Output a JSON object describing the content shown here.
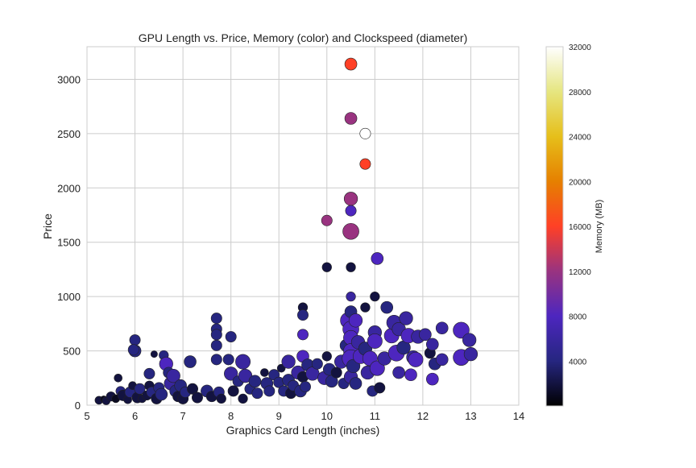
{
  "chart_data": {
    "type": "scatter",
    "title": "GPU Length vs. Price, Memory (color) and Clockspeed (diameter)",
    "xlabel": "Graphics Card Length (inches)",
    "ylabel": "Price",
    "xlim": [
      5,
      14
    ],
    "ylim": [
      0,
      3300
    ],
    "xticks": [
      5,
      6,
      7,
      8,
      9,
      10,
      11,
      12,
      13,
      14
    ],
    "yticks": [
      0,
      500,
      1000,
      1500,
      2000,
      2500,
      3000
    ],
    "grid": true,
    "colorbar": {
      "label": "Memory (MB)",
      "range": [
        0,
        32000
      ],
      "ticks": [
        4000,
        8000,
        12000,
        16000,
        20000,
        24000,
        28000,
        32000
      ],
      "colormap": "CMRmap"
    },
    "point_fields": [
      "length_in",
      "price",
      "memory_mb",
      "clockspeed_mhz"
    ],
    "points": [
      [
        5.25,
        45,
        2000,
        900
      ],
      [
        5.35,
        55,
        1000,
        850
      ],
      [
        5.4,
        40,
        2000,
        900
      ],
      [
        5.5,
        80,
        2000,
        950
      ],
      [
        5.6,
        60,
        1000,
        900
      ],
      [
        5.65,
        250,
        2000,
        900
      ],
      [
        5.7,
        130,
        4000,
        950
      ],
      [
        5.75,
        90,
        2000,
        1000
      ],
      [
        5.85,
        50,
        2000,
        900
      ],
      [
        5.9,
        120,
        4000,
        1000
      ],
      [
        5.95,
        180,
        2000,
        900
      ],
      [
        6.0,
        600,
        4000,
        1000
      ],
      [
        6.0,
        500,
        4000,
        1050
      ],
      [
        5.97,
        510,
        4000,
        1000
      ],
      [
        6.05,
        70,
        2000,
        1000
      ],
      [
        6.1,
        150,
        4000,
        1000
      ],
      [
        6.15,
        60,
        2000,
        900
      ],
      [
        6.25,
        90,
        2000,
        950
      ],
      [
        6.3,
        290,
        4000,
        1000
      ],
      [
        6.3,
        180,
        2000,
        950
      ],
      [
        6.35,
        120,
        4000,
        1000
      ],
      [
        6.4,
        470,
        2000,
        850
      ],
      [
        6.45,
        60,
        2000,
        1000
      ],
      [
        6.5,
        160,
        4000,
        1000
      ],
      [
        6.55,
        100,
        4000,
        1050
      ],
      [
        6.6,
        460,
        4000,
        950
      ],
      [
        6.65,
        380,
        8000,
        1100
      ],
      [
        6.7,
        300,
        4000,
        1000
      ],
      [
        6.75,
        200,
        6000,
        1100
      ],
      [
        6.8,
        270,
        6000,
        1100
      ],
      [
        6.85,
        130,
        4000,
        1050
      ],
      [
        6.9,
        80,
        2000,
        1000
      ],
      [
        6.95,
        180,
        4000,
        1050
      ],
      [
        7.0,
        60,
        2000,
        1000
      ],
      [
        7.05,
        120,
        4000,
        1000
      ],
      [
        7.15,
        400,
        4000,
        1050
      ],
      [
        7.2,
        150,
        2000,
        1000
      ],
      [
        7.3,
        70,
        2000,
        1000
      ],
      [
        7.5,
        130,
        4000,
        1050
      ],
      [
        7.6,
        80,
        2000,
        1000
      ],
      [
        7.7,
        800,
        4000,
        1000
      ],
      [
        7.7,
        700,
        4000,
        1000
      ],
      [
        7.7,
        650,
        4000,
        1000
      ],
      [
        7.7,
        550,
        4000,
        1000
      ],
      [
        7.7,
        420,
        4000,
        1000
      ],
      [
        7.75,
        120,
        4000,
        1000
      ],
      [
        7.8,
        60,
        2000,
        950
      ],
      [
        7.95,
        420,
        4000,
        1000
      ],
      [
        8.0,
        630,
        4000,
        1000
      ],
      [
        8.0,
        290,
        6000,
        1100
      ],
      [
        8.05,
        130,
        2000,
        1000
      ],
      [
        8.15,
        220,
        4000,
        1000
      ],
      [
        8.25,
        400,
        6000,
        1150
      ],
      [
        8.3,
        270,
        6000,
        1100
      ],
      [
        8.25,
        60,
        2000,
        950
      ],
      [
        8.4,
        150,
        4000,
        1000
      ],
      [
        8.5,
        220,
        4000,
        1050
      ],
      [
        8.55,
        110,
        4000,
        1000
      ],
      [
        8.7,
        300,
        2000,
        900
      ],
      [
        8.75,
        200,
        4000,
        1050
      ],
      [
        8.8,
        130,
        4000,
        1000
      ],
      [
        8.9,
        280,
        4000,
        1000
      ],
      [
        9.0,
        210,
        4000,
        1000
      ],
      [
        9.05,
        340,
        2000,
        900
      ],
      [
        9.1,
        130,
        4000,
        1000
      ],
      [
        9.2,
        400,
        6000,
        1100
      ],
      [
        9.2,
        230,
        4000,
        1050
      ],
      [
        9.25,
        110,
        2000,
        1000
      ],
      [
        9.3,
        180,
        4000,
        1000
      ],
      [
        9.4,
        300,
        6000,
        1100
      ],
      [
        9.45,
        130,
        4000,
        1050
      ],
      [
        9.5,
        900,
        2000,
        950
      ],
      [
        9.5,
        830,
        4000,
        1000
      ],
      [
        9.5,
        650,
        8000,
        1000
      ],
      [
        9.5,
        450,
        8000,
        1050
      ],
      [
        9.5,
        260,
        2000,
        1000
      ],
      [
        9.55,
        170,
        4000,
        1000
      ],
      [
        9.6,
        370,
        4000,
        1050
      ],
      [
        9.7,
        290,
        6000,
        1100
      ],
      [
        9.8,
        380,
        4000,
        1000
      ],
      [
        9.95,
        250,
        6000,
        1100
      ],
      [
        10.0,
        1700,
        12000,
        1000
      ],
      [
        10.0,
        1270,
        2000,
        950
      ],
      [
        10.0,
        450,
        2000,
        950
      ],
      [
        10.05,
        330,
        4000,
        1050
      ],
      [
        10.1,
        220,
        4000,
        1050
      ],
      [
        10.2,
        300,
        2000,
        1000
      ],
      [
        10.3,
        400,
        6000,
        1100
      ],
      [
        10.35,
        200,
        4000,
        1000
      ],
      [
        10.4,
        550,
        4000,
        1050
      ],
      [
        10.45,
        780,
        8000,
        1200
      ],
      [
        10.5,
        3140,
        16000,
        1050
      ],
      [
        10.5,
        2640,
        12000,
        1050
      ],
      [
        10.5,
        1900,
        12000,
        1100
      ],
      [
        10.5,
        1790,
        8000,
        1000
      ],
      [
        10.5,
        1600,
        12000,
        1200
      ],
      [
        10.5,
        1270,
        2000,
        950
      ],
      [
        10.5,
        1000,
        6000,
        950
      ],
      [
        10.5,
        860,
        4000,
        1050
      ],
      [
        10.5,
        700,
        8000,
        1200
      ],
      [
        10.5,
        620,
        8000,
        1150
      ],
      [
        10.5,
        500,
        8000,
        1150
      ],
      [
        10.5,
        430,
        8000,
        1250
      ],
      [
        10.5,
        260,
        6000,
        1100
      ],
      [
        10.55,
        360,
        4000,
        1100
      ],
      [
        10.6,
        780,
        8000,
        1100
      ],
      [
        10.6,
        200,
        4000,
        1050
      ],
      [
        10.65,
        580,
        6000,
        1100
      ],
      [
        10.7,
        450,
        8000,
        1150
      ],
      [
        10.8,
        2500,
        32000,
        1000
      ],
      [
        10.8,
        2220,
        16000,
        1000
      ],
      [
        10.8,
        900,
        2000,
        950
      ],
      [
        10.8,
        520,
        4000,
        1100
      ],
      [
        10.85,
        300,
        6000,
        1100
      ],
      [
        10.9,
        430,
        8000,
        1150
      ],
      [
        10.95,
        130,
        4000,
        1000
      ],
      [
        11.0,
        1000,
        2000,
        950
      ],
      [
        11.0,
        670,
        6000,
        1100
      ],
      [
        11.0,
        590,
        8000,
        1150
      ],
      [
        11.05,
        1350,
        8000,
        1050
      ],
      [
        11.05,
        340,
        8000,
        1150
      ],
      [
        11.1,
        160,
        2000,
        1000
      ],
      [
        11.2,
        430,
        6000,
        1100
      ],
      [
        11.25,
        900,
        4000,
        1050
      ],
      [
        11.35,
        640,
        8000,
        1150
      ],
      [
        11.4,
        760,
        6000,
        1150
      ],
      [
        11.45,
        480,
        8000,
        1200
      ],
      [
        11.5,
        300,
        6000,
        1050
      ],
      [
        11.5,
        700,
        6000,
        1100
      ],
      [
        11.6,
        530,
        4000,
        1100
      ],
      [
        11.65,
        800,
        6000,
        1100
      ],
      [
        11.7,
        640,
        8000,
        1150
      ],
      [
        11.75,
        280,
        8000,
        1050
      ],
      [
        11.8,
        440,
        6000,
        1100
      ],
      [
        11.85,
        420,
        8000,
        1150
      ],
      [
        11.9,
        630,
        6000,
        1100
      ],
      [
        12.05,
        650,
        6000,
        1050
      ],
      [
        12.15,
        480,
        2000,
        1000
      ],
      [
        12.2,
        560,
        6000,
        1050
      ],
      [
        12.2,
        240,
        8000,
        1050
      ],
      [
        12.25,
        380,
        4000,
        1050
      ],
      [
        12.4,
        710,
        6000,
        1050
      ],
      [
        12.4,
        420,
        6000,
        1050
      ],
      [
        12.8,
        690,
        8000,
        1200
      ],
      [
        12.8,
        440,
        8000,
        1200
      ],
      [
        12.97,
        600,
        6000,
        1100
      ],
      [
        13.0,
        470,
        6000,
        1100
      ]
    ]
  }
}
